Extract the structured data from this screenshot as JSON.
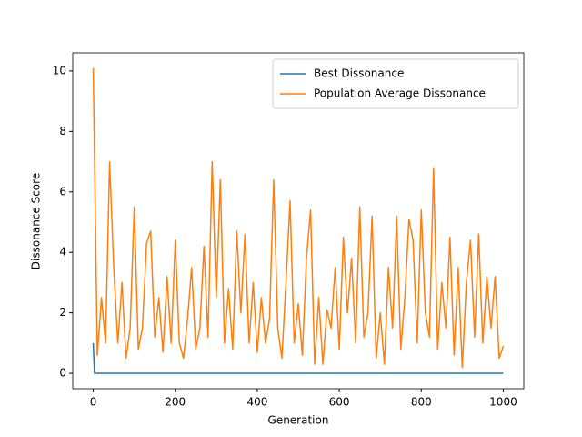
{
  "chart_data": {
    "type": "line",
    "xlabel": "Generation",
    "ylabel": "Dissonance Score",
    "xlim": [
      -50,
      1050
    ],
    "ylim": [
      -0.51,
      10.6
    ],
    "xticks": [
      0,
      200,
      400,
      600,
      800,
      1000
    ],
    "yticks": [
      0,
      2,
      4,
      6,
      8,
      10
    ],
    "grid": false,
    "legend": "upper-right",
    "series": [
      {
        "name": "Best Dissonance",
        "color": "#1f77b4",
        "x": [
          0,
          3,
          1000
        ],
        "values": [
          1.0,
          0.0,
          0.0
        ]
      },
      {
        "name": "Population Average Dissonance",
        "color": "#ff7f0e",
        "x": [
          0,
          10,
          20,
          30,
          40,
          50,
          60,
          70,
          80,
          90,
          100,
          110,
          120,
          130,
          140,
          150,
          160,
          170,
          180,
          190,
          200,
          210,
          220,
          230,
          240,
          250,
          260,
          270,
          280,
          290,
          300,
          310,
          320,
          330,
          340,
          350,
          360,
          370,
          380,
          390,
          400,
          410,
          420,
          430,
          440,
          450,
          460,
          470,
          480,
          490,
          500,
          510,
          520,
          530,
          540,
          550,
          560,
          570,
          580,
          590,
          600,
          610,
          620,
          630,
          640,
          650,
          660,
          670,
          680,
          690,
          700,
          710,
          720,
          730,
          740,
          750,
          760,
          770,
          780,
          790,
          800,
          810,
          820,
          830,
          840,
          850,
          860,
          870,
          880,
          890,
          900,
          910,
          920,
          930,
          940,
          950,
          960,
          970,
          980,
          990,
          1000
        ],
        "values": [
          10.1,
          0.6,
          2.5,
          1.0,
          7.0,
          3.5,
          1.0,
          3.0,
          0.5,
          1.5,
          5.5,
          0.8,
          1.5,
          4.3,
          4.7,
          1.2,
          2.5,
          0.7,
          3.2,
          1.0,
          4.4,
          1.0,
          0.5,
          1.8,
          3.5,
          0.8,
          1.5,
          4.2,
          1.2,
          7.0,
          2.5,
          6.4,
          1.0,
          2.8,
          0.8,
          4.7,
          2.0,
          4.6,
          1.0,
          3.0,
          0.7,
          2.5,
          1.0,
          1.8,
          6.4,
          1.5,
          0.5,
          3.0,
          5.7,
          1.0,
          2.3,
          0.6,
          3.8,
          5.4,
          0.3,
          2.5,
          0.3,
          2.1,
          1.5,
          3.5,
          0.8,
          4.5,
          2.0,
          3.8,
          1.0,
          5.5,
          1.2,
          2.0,
          5.2,
          0.5,
          2.0,
          0.3,
          3.5,
          1.5,
          5.2,
          0.8,
          2.5,
          5.1,
          4.4,
          1.0,
          5.4,
          2.0,
          1.2,
          6.8,
          0.8,
          3.0,
          1.5,
          4.5,
          0.6,
          3.5,
          0.2,
          3.0,
          4.4,
          1.2,
          4.6,
          1.0,
          3.2,
          1.5,
          3.2,
          0.5,
          0.9
        ]
      }
    ]
  }
}
